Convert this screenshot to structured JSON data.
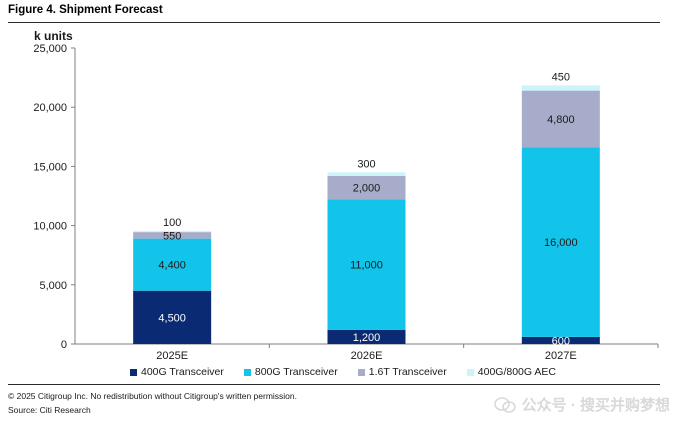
{
  "figure": {
    "title": "Figure 4. Shipment Forecast",
    "copyright": "© 2025 Citigroup Inc. No redistribution without Citigroup's written permission.",
    "source": "Source: Citi Research",
    "watermark": "公众号 · 搜买并购梦想"
  },
  "chart_data": {
    "type": "bar",
    "stacked": true,
    "ylabel": "k units",
    "ylim": [
      0,
      25000
    ],
    "yticks": [
      0,
      5000,
      10000,
      15000,
      20000,
      25000
    ],
    "ytick_labels": [
      "0",
      "5,000",
      "10,000",
      "15,000",
      "20,000",
      "25,000"
    ],
    "grid": false,
    "legend_position": "bottom",
    "categories": [
      "2025E",
      "2026E",
      "2027E"
    ],
    "series": [
      {
        "name": "400G Transceiver",
        "color": "#0a2a74",
        "label_color": "#ffffff",
        "values": [
          4500,
          1200,
          600
        ],
        "labels": [
          "4,500",
          "1,200",
          "600"
        ]
      },
      {
        "name": "800G Transceiver",
        "color": "#12c4ea",
        "label_color": "#1a1a1a",
        "values": [
          4400,
          11000,
          16000
        ],
        "labels": [
          "4,400",
          "11,000",
          "16,000"
        ]
      },
      {
        "name": "1.6T Transceiver",
        "color": "#a6acc9",
        "label_color": "#1a1a1a",
        "values": [
          550,
          2000,
          4800
        ],
        "labels": [
          "550",
          "2,000",
          "4,800"
        ]
      },
      {
        "name": "400G/800G AEC",
        "color": "#cdf4fb",
        "label_color": "#1a1a1a",
        "values": [
          100,
          300,
          450
        ],
        "labels": [
          "100",
          "300",
          "450"
        ]
      }
    ]
  }
}
